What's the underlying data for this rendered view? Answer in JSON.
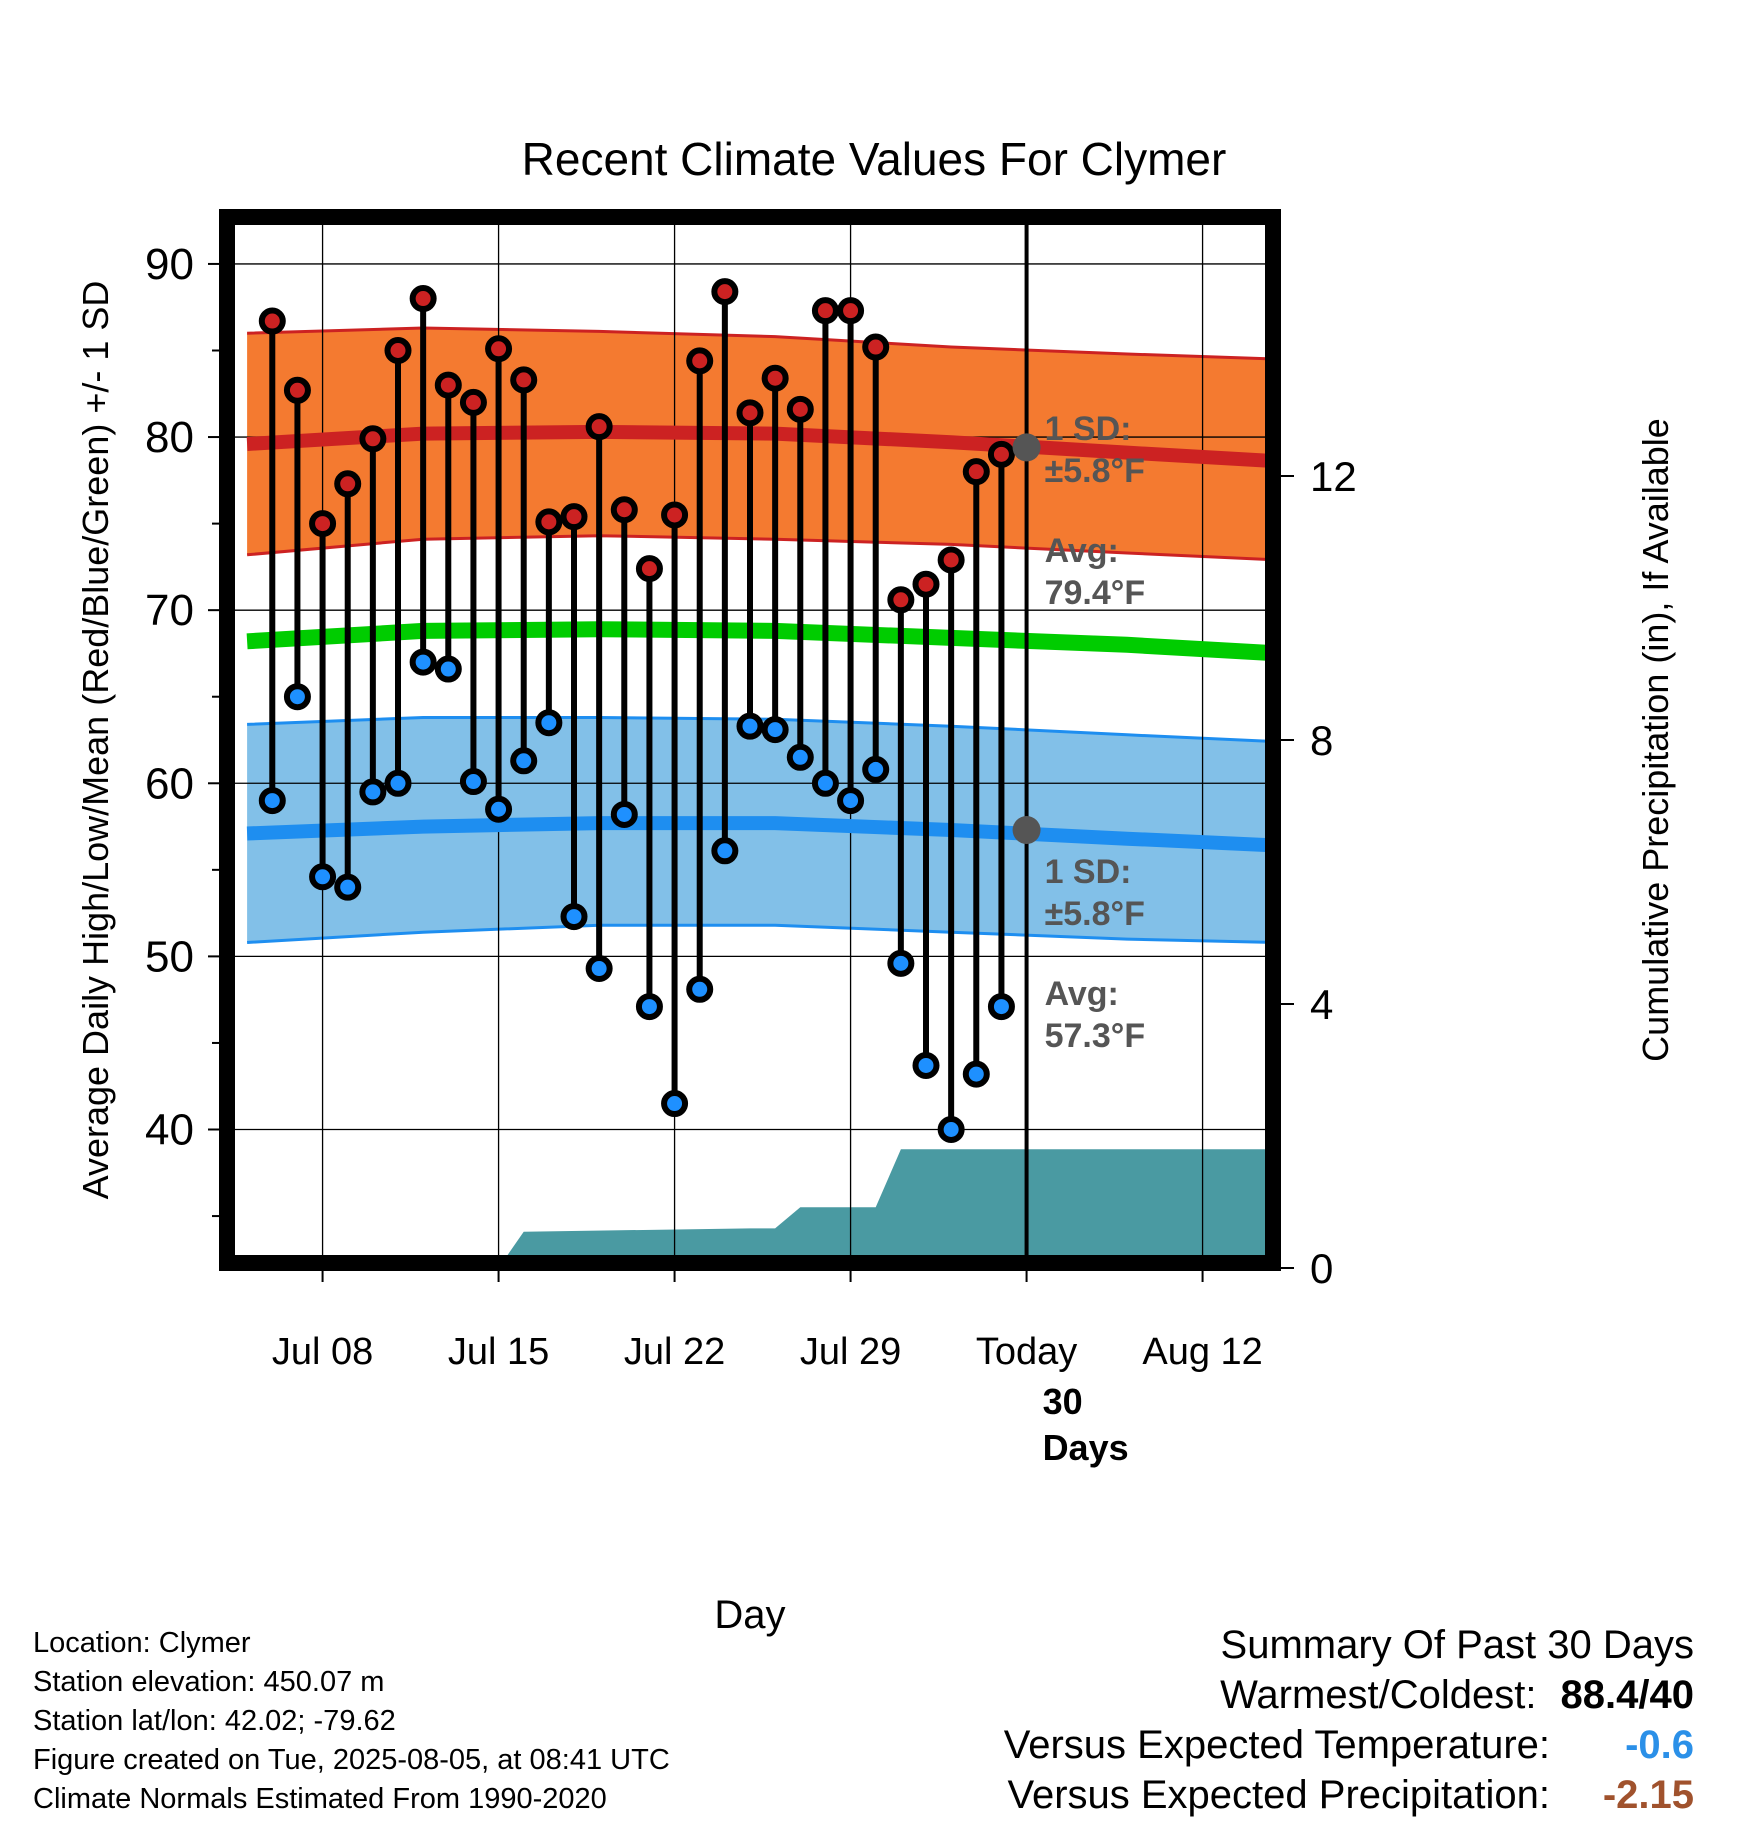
{
  "chart_data": {
    "type": "line",
    "title": "Recent Climate Values For Clymer",
    "xlabel": "Day",
    "ylabel": "Average Daily High/Low/Mean (Red/Blue/Green) +/- 1 SD",
    "y2label": "Cumulative Precipitation (in), If Available",
    "xlim": [
      "2025-07-04",
      "2025-08-15"
    ],
    "ylim": [
      32,
      93
    ],
    "y2lim": [
      0,
      16
    ],
    "x_ticks": [
      {
        "date": "2025-07-08",
        "label": "Jul 08"
      },
      {
        "date": "2025-07-15",
        "label": "Jul 15"
      },
      {
        "date": "2025-07-22",
        "label": "Jul 22"
      },
      {
        "date": "2025-07-29",
        "label": "Jul 29"
      },
      {
        "date": "2025-08-05",
        "label": "Today"
      },
      {
        "date": "2025-08-12",
        "label": "Aug 12"
      }
    ],
    "y_ticks": [
      40,
      50,
      60,
      70,
      80,
      90
    ],
    "y2_ticks": [
      0,
      4,
      8,
      12
    ],
    "grid": true,
    "today": "2025-08-05",
    "today_label": "30\nDays",
    "normals": {
      "dates": [
        "2025-07-05",
        "2025-07-12",
        "2025-07-19",
        "2025-07-26",
        "2025-08-02",
        "2025-08-09",
        "2025-08-15"
      ],
      "high_avg": [
        79.6,
        80.2,
        80.3,
        80.2,
        79.7,
        79.1,
        78.6
      ],
      "high_upper": [
        86.0,
        86.3,
        86.1,
        85.8,
        85.2,
        84.8,
        84.5
      ],
      "high_lower": [
        73.2,
        74.1,
        74.3,
        74.1,
        73.8,
        73.3,
        72.9
      ],
      "mean_avg": [
        68.2,
        68.8,
        68.9,
        68.8,
        68.4,
        68.0,
        67.5
      ],
      "low_avg": [
        57.1,
        57.5,
        57.7,
        57.7,
        57.3,
        56.8,
        56.4
      ],
      "low_upper": [
        63.4,
        63.8,
        63.8,
        63.7,
        63.3,
        62.8,
        62.4
      ],
      "low_lower": [
        50.8,
        51.4,
        51.8,
        51.8,
        51.4,
        51.0,
        50.8
      ]
    },
    "high_label": {
      "sd_title": "1 SD:",
      "sd_value": "±5.8°F",
      "avg_title": "Avg:",
      "avg_value": "79.4°F",
      "today_avg": 79.4
    },
    "low_label": {
      "sd_title": "1 SD:",
      "sd_value": "±5.8°F",
      "avg_title": "Avg:",
      "avg_value": "57.3°F",
      "today_avg": 57.3
    },
    "daily": {
      "dates": [
        "2025-07-06",
        "2025-07-07",
        "2025-07-08",
        "2025-07-09",
        "2025-07-10",
        "2025-07-11",
        "2025-07-12",
        "2025-07-13",
        "2025-07-14",
        "2025-07-15",
        "2025-07-16",
        "2025-07-17",
        "2025-07-18",
        "2025-07-19",
        "2025-07-20",
        "2025-07-21",
        "2025-07-22",
        "2025-07-23",
        "2025-07-24",
        "2025-07-25",
        "2025-07-26",
        "2025-07-27",
        "2025-07-28",
        "2025-07-29",
        "2025-07-30",
        "2025-07-31",
        "2025-08-01",
        "2025-08-02",
        "2025-08-03",
        "2025-08-04"
      ],
      "highs": [
        86.7,
        82.7,
        75.0,
        77.3,
        79.9,
        85.0,
        88.0,
        83.0,
        82.0,
        85.1,
        83.3,
        75.1,
        75.4,
        80.6,
        75.8,
        72.4,
        75.5,
        84.4,
        88.4,
        81.4,
        83.4,
        81.6,
        87.3,
        87.3,
        85.2,
        70.6,
        71.5,
        72.9,
        78.0,
        79.0
      ],
      "lows": [
        59.0,
        65.0,
        54.6,
        54.0,
        59.5,
        60.0,
        67.0,
        66.6,
        60.1,
        58.5,
        61.3,
        63.5,
        52.3,
        49.3,
        58.2,
        47.1,
        41.5,
        48.1,
        56.1,
        63.3,
        63.1,
        61.5,
        60.0,
        59.0,
        60.8,
        49.6,
        43.7,
        40.0,
        43.2,
        47.1
      ]
    },
    "precip": {
      "dates": [
        "2025-07-05",
        "2025-07-15",
        "2025-07-16",
        "2025-07-25",
        "2025-07-26",
        "2025-07-27",
        "2025-07-30",
        "2025-07-31",
        "2025-08-05",
        "2025-08-15"
      ],
      "values": [
        0.0,
        0.0,
        0.55,
        0.6,
        0.6,
        0.92,
        0.92,
        1.8,
        1.8,
        1.8
      ]
    }
  },
  "info": [
    "Location: Clymer",
    "Station elevation: 450.07 m",
    "Station lat/lon: 42.02; -79.62",
    "Figure created on Tue, 2025-08-05, at 08:41 UTC",
    "Climate Normals Estimated From 1990-2020"
  ],
  "summary": {
    "title": "Summary Of Past 30 Days",
    "rows": [
      {
        "label": "Warmest/Coldest:",
        "value": "88.4/40",
        "color": "#000000"
      },
      {
        "label": "Versus Expected Temperature:",
        "value": "-0.6",
        "color": "#2b90e8"
      },
      {
        "label": "Versus Expected Precipitation:",
        "value": "-2.15",
        "color": "#a0522d"
      }
    ]
  },
  "colors": {
    "high_band": "#f47a30",
    "high_line": "#cc2222",
    "mean_line": "#00cc00",
    "low_band": "#82c0e8",
    "low_line": "#1e8ef0",
    "precip": "#4a9aa2",
    "high_marker": "#cc2222",
    "low_marker": "#1e90ff",
    "annotation": "#555555"
  }
}
